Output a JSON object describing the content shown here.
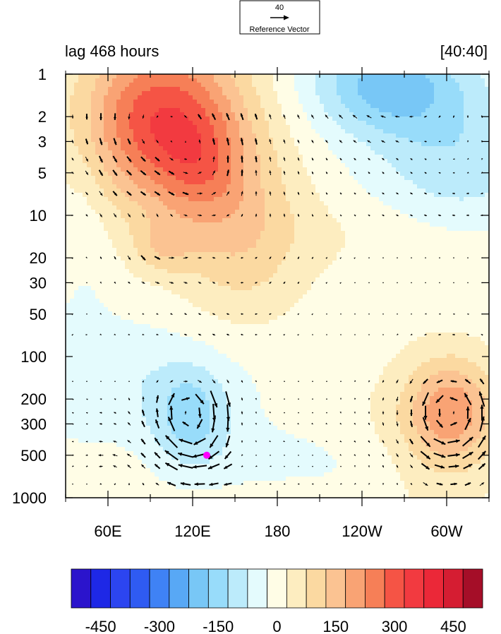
{
  "reference_vector": {
    "value": "40",
    "label": "Reference Vector"
  },
  "chart_data": {
    "type": "heatmap",
    "title_left": "lag 468 hours",
    "title_right": "[40:40]",
    "xlabel": "",
    "ylabel": "",
    "x_ticks": [
      "60E",
      "120E",
      "180",
      "120W",
      "60W"
    ],
    "x_tick_values": [
      60,
      120,
      180,
      240,
      300
    ],
    "xlim": [
      30,
      330
    ],
    "y_ticks": [
      "1",
      "2",
      "3",
      "5",
      "10",
      "20",
      "30",
      "50",
      "100",
      "200",
      "300",
      "500",
      "1000"
    ],
    "y_tick_values": [
      1,
      2,
      3,
      5,
      10,
      20,
      30,
      50,
      100,
      200,
      300,
      500,
      1000
    ],
    "ylim": [
      1,
      1000
    ],
    "y_scale": "log",
    "y_reversed": true,
    "marker": {
      "x": 130,
      "y": 500,
      "color": "#ff00ff"
    },
    "colorbar": {
      "tick_labels": [
        "-450",
        "-300",
        "-150",
        "0",
        "150",
        "300",
        "450"
      ],
      "tick_values": [
        -450,
        -300,
        -150,
        0,
        150,
        300,
        450
      ],
      "levels": [
        -525,
        -475,
        -425,
        -375,
        -325,
        -275,
        -225,
        -175,
        -125,
        -75,
        -25,
        25,
        75,
        125,
        175,
        225,
        275,
        325,
        375,
        425,
        475,
        525
      ],
      "colors": [
        "#2b14cc",
        "#1e28e6",
        "#2c45f0",
        "#2f5bf2",
        "#3f82f5",
        "#58a8f5",
        "#78c7f6",
        "#98dcfa",
        "#bcebfb",
        "#e4fbfd",
        "#fffde6",
        "#fdedc0",
        "#fbd9a1",
        "#fbc392",
        "#f9a374",
        "#f67f57",
        "#f55445",
        "#f23a40",
        "#eb2838",
        "#d51d32",
        "#a50e28"
      ]
    },
    "contour_field": "stream function / height anomaly (approximate, reconstructed)",
    "vectors": "wind vectors (u, omega) sampled on grid; approximate"
  }
}
